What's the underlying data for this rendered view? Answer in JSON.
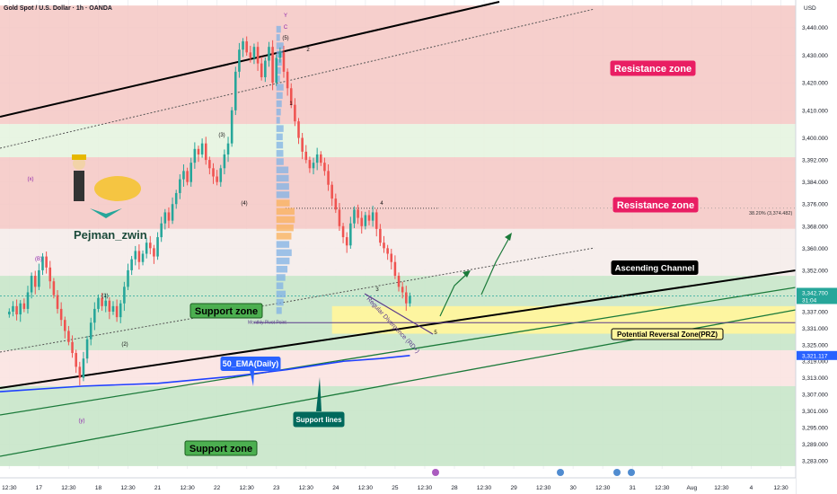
{
  "header": {
    "symbol_title": "Gold Spot / U.S. Dollar · 1h · OANDA",
    "currency": "USD"
  },
  "colors": {
    "bull": "#26a69a",
    "bear": "#ef5350",
    "resistance_zone": "#f4c7c3",
    "support_zone": "#c8e6c9",
    "prz_zone": "#fff59d",
    "ema": "#1e40ff",
    "price_tag": "#26a69a",
    "ema_tag": "#2962ff"
  },
  "chart_data": {
    "type": "candlestick",
    "ylim": [
      3280,
      3450
    ],
    "y_ticks": [
      3283,
      3289,
      3295,
      3301,
      3307,
      3313,
      3319,
      3325,
      3331,
      3337,
      3344.5,
      3352,
      3360,
      3368,
      3376,
      3384,
      3392,
      3400,
      3410,
      3420,
      3430,
      3440
    ],
    "y_tick_labels": [
      "3,283.000",
      "3,289.000",
      "3,295.000",
      "3,301.000",
      "3,307.000",
      "3,313.000",
      "3,319.000",
      "3,325.000",
      "3,331.000",
      "3,337.000",
      "3,344.500",
      "3,352.000",
      "3,360.000",
      "3,368.000",
      "3,376.000",
      "3,384.000",
      "3,392.000",
      "3,400.000",
      "3,410.000",
      "3,420.000",
      "3,430.000",
      "3,440.000"
    ],
    "x_tick_labels": [
      "12:30",
      "17",
      "12:30",
      "18",
      "12:30",
      "21",
      "12:30",
      "22",
      "12:30",
      "23",
      "12:30",
      "24",
      "12:30",
      "25",
      "12:30",
      "28",
      "12:30",
      "29",
      "12:30",
      "30",
      "12:30",
      "31",
      "12:30",
      "Aug",
      "12:30",
      "4",
      "12:30"
    ],
    "x_tick_pos": [
      0,
      8,
      16,
      24,
      32,
      40,
      48,
      56,
      64,
      72,
      80,
      88,
      96,
      104,
      112,
      120,
      128,
      136,
      144,
      152,
      160,
      168,
      176,
      184,
      192,
      200,
      208
    ],
    "x_range": [
      -2.5,
      212
    ],
    "closes": [
      3337,
      3339,
      3336,
      3340,
      3338,
      3344,
      3350,
      3346,
      3352,
      3357,
      3353,
      3348,
      3343,
      3338,
      3334,
      3330,
      3326,
      3322,
      3317,
      3313,
      3320,
      3327,
      3333,
      3338,
      3342,
      3339,
      3341,
      3337,
      3339,
      3335,
      3340,
      3346,
      3352,
      3356,
      3359,
      3355,
      3358,
      3362,
      3360,
      3357,
      3364,
      3369,
      3373,
      3370,
      3376,
      3380,
      3385,
      3388,
      3384,
      3391,
      3396,
      3394,
      3398,
      3392,
      3389,
      3386,
      3384,
      3389,
      3394,
      3398,
      3410,
      3424,
      3432,
      3435,
      3431,
      3429,
      3433,
      3427,
      3422,
      3428,
      3433,
      3420,
      3429,
      3431,
      3424,
      3418,
      3412,
      3406,
      3400,
      3395,
      3392,
      3389,
      3391,
      3394,
      3391,
      3388,
      3383,
      3378,
      3374,
      3368,
      3364,
      3361,
      3369,
      3374,
      3371,
      3368,
      3372,
      3370,
      3373,
      3367,
      3362,
      3360,
      3358,
      3355,
      3350,
      3346,
      3344,
      3340,
      3342.7
    ],
    "current_price": "3,342.700",
    "countdown": "31:04",
    "ema_price": "3,321.117",
    "fib_level_label": "38.20% (3,374.482)",
    "resistance_zones": [
      [
        3405,
        3448
      ],
      [
        3367,
        3393
      ]
    ],
    "support_zones": [
      [
        3323,
        3350
      ],
      [
        3281,
        3310
      ]
    ],
    "prz": [
      3329,
      3339
    ],
    "monthly_pivot": 3333,
    "ema_points": [
      [
        -2.5,
        3308
      ],
      [
        20,
        3310
      ],
      [
        40,
        3311
      ],
      [
        60,
        3313.5
      ],
      [
        75,
        3316
      ],
      [
        90,
        3319
      ],
      [
        100,
        3320
      ],
      [
        108,
        3321.1
      ]
    ],
    "wave_labels": [
      "(x)",
      "(y)",
      "(B)",
      "(1)",
      "(2)",
      "(3)",
      "(4)",
      "(5)",
      "Y",
      "C",
      "1",
      "2",
      "3",
      "4",
      "5"
    ],
    "resistance_label": "Resistance zone",
    "support_label": "Support zone",
    "ascending_channel_label": "Ascending Channel",
    "prz_label": "Potential Reversal Zone(PRZ)",
    "ema_label": "50_EMA(Daily)",
    "support_lines_label": "Support lines",
    "pivot_label": "Monthly Pivot Point",
    "divergence_label": "Regular Divergence (RD+)",
    "author": "Pejman_zwin"
  }
}
